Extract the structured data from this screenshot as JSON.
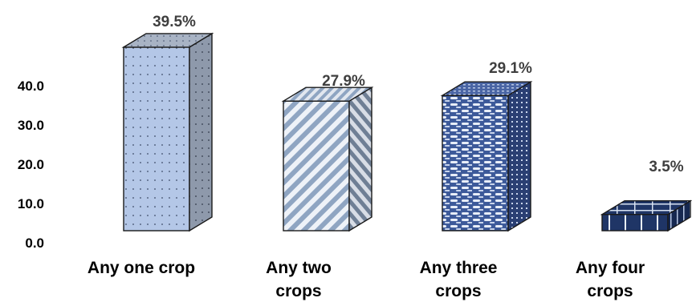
{
  "chart_data": {
    "type": "bar",
    "style": "3d-column",
    "categories": [
      [
        "Any one crop"
      ],
      [
        "Any two",
        "crops"
      ],
      [
        "Any three",
        "crops"
      ],
      [
        "Any four",
        "crops"
      ]
    ],
    "values": [
      39.5,
      27.9,
      29.1,
      3.5
    ],
    "data_labels": [
      "39.5%",
      "27.9%",
      "29.1%",
      "3.5%"
    ],
    "y_ticks": [
      "0.0",
      "10.0",
      "20.0",
      "30.0",
      "40.0"
    ],
    "ylim": [
      0,
      40
    ],
    "grid": false,
    "legend": "none",
    "title": "",
    "xlabel": "",
    "ylabel": ""
  },
  "colors": {
    "outline": "#1a1a1a",
    "bar1_front": "#b4c7e7",
    "bar1_side": "#8e99ab",
    "bar2_front": "#8fa5c2",
    "bar2_side": "#6f7f95",
    "bar3_front": "#3d5a9a",
    "bar3_side": "#2a3f73",
    "bar4_front": "#1f3566",
    "bar4_side": "#162850"
  }
}
